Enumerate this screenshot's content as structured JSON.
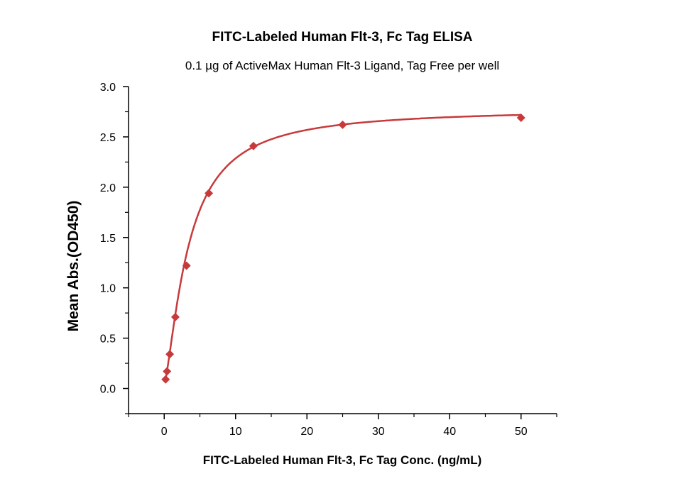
{
  "chart_data": {
    "type": "scatter",
    "title": "FITC-Labeled Human Flt-3, Fc Tag ELISA",
    "subtitle": "0.1 µg of ActiveMax Human Flt-3 Ligand, Tag Free per well",
    "xlabel": "FITC-Labeled Human Flt-3, Fc Tag Conc. (ng/mL)",
    "ylabel": "Mean Abs.(OD450)",
    "xlim": [
      -5,
      55
    ],
    "ylim": [
      -0.25,
      3.0
    ],
    "xticks": [
      0,
      10,
      20,
      30,
      40,
      50
    ],
    "xtick_labels": [
      "0",
      "10",
      "20",
      "30",
      "40",
      "50"
    ],
    "yticks": [
      0.0,
      0.5,
      1.0,
      1.5,
      2.0,
      2.5,
      3.0
    ],
    "ytick_labels": [
      "0.0",
      "0.5",
      "1.0",
      "1.5",
      "2.0",
      "2.5",
      "3.0"
    ],
    "grid": false,
    "color": "#c8393b",
    "series": [
      {
        "name": "Mean Abs.",
        "marker": "diamond",
        "x": [
          0.195,
          0.39,
          0.78,
          1.56,
          3.125,
          6.25,
          12.5,
          25,
          50
        ],
        "y": [
          0.09,
          0.17,
          0.34,
          0.71,
          1.22,
          1.94,
          2.41,
          2.62,
          2.69
        ]
      }
    ],
    "fit": {
      "type": "4PL",
      "bottom": 0.05,
      "top": 2.78,
      "ec50": 3.4,
      "hill": 1.4
    }
  }
}
